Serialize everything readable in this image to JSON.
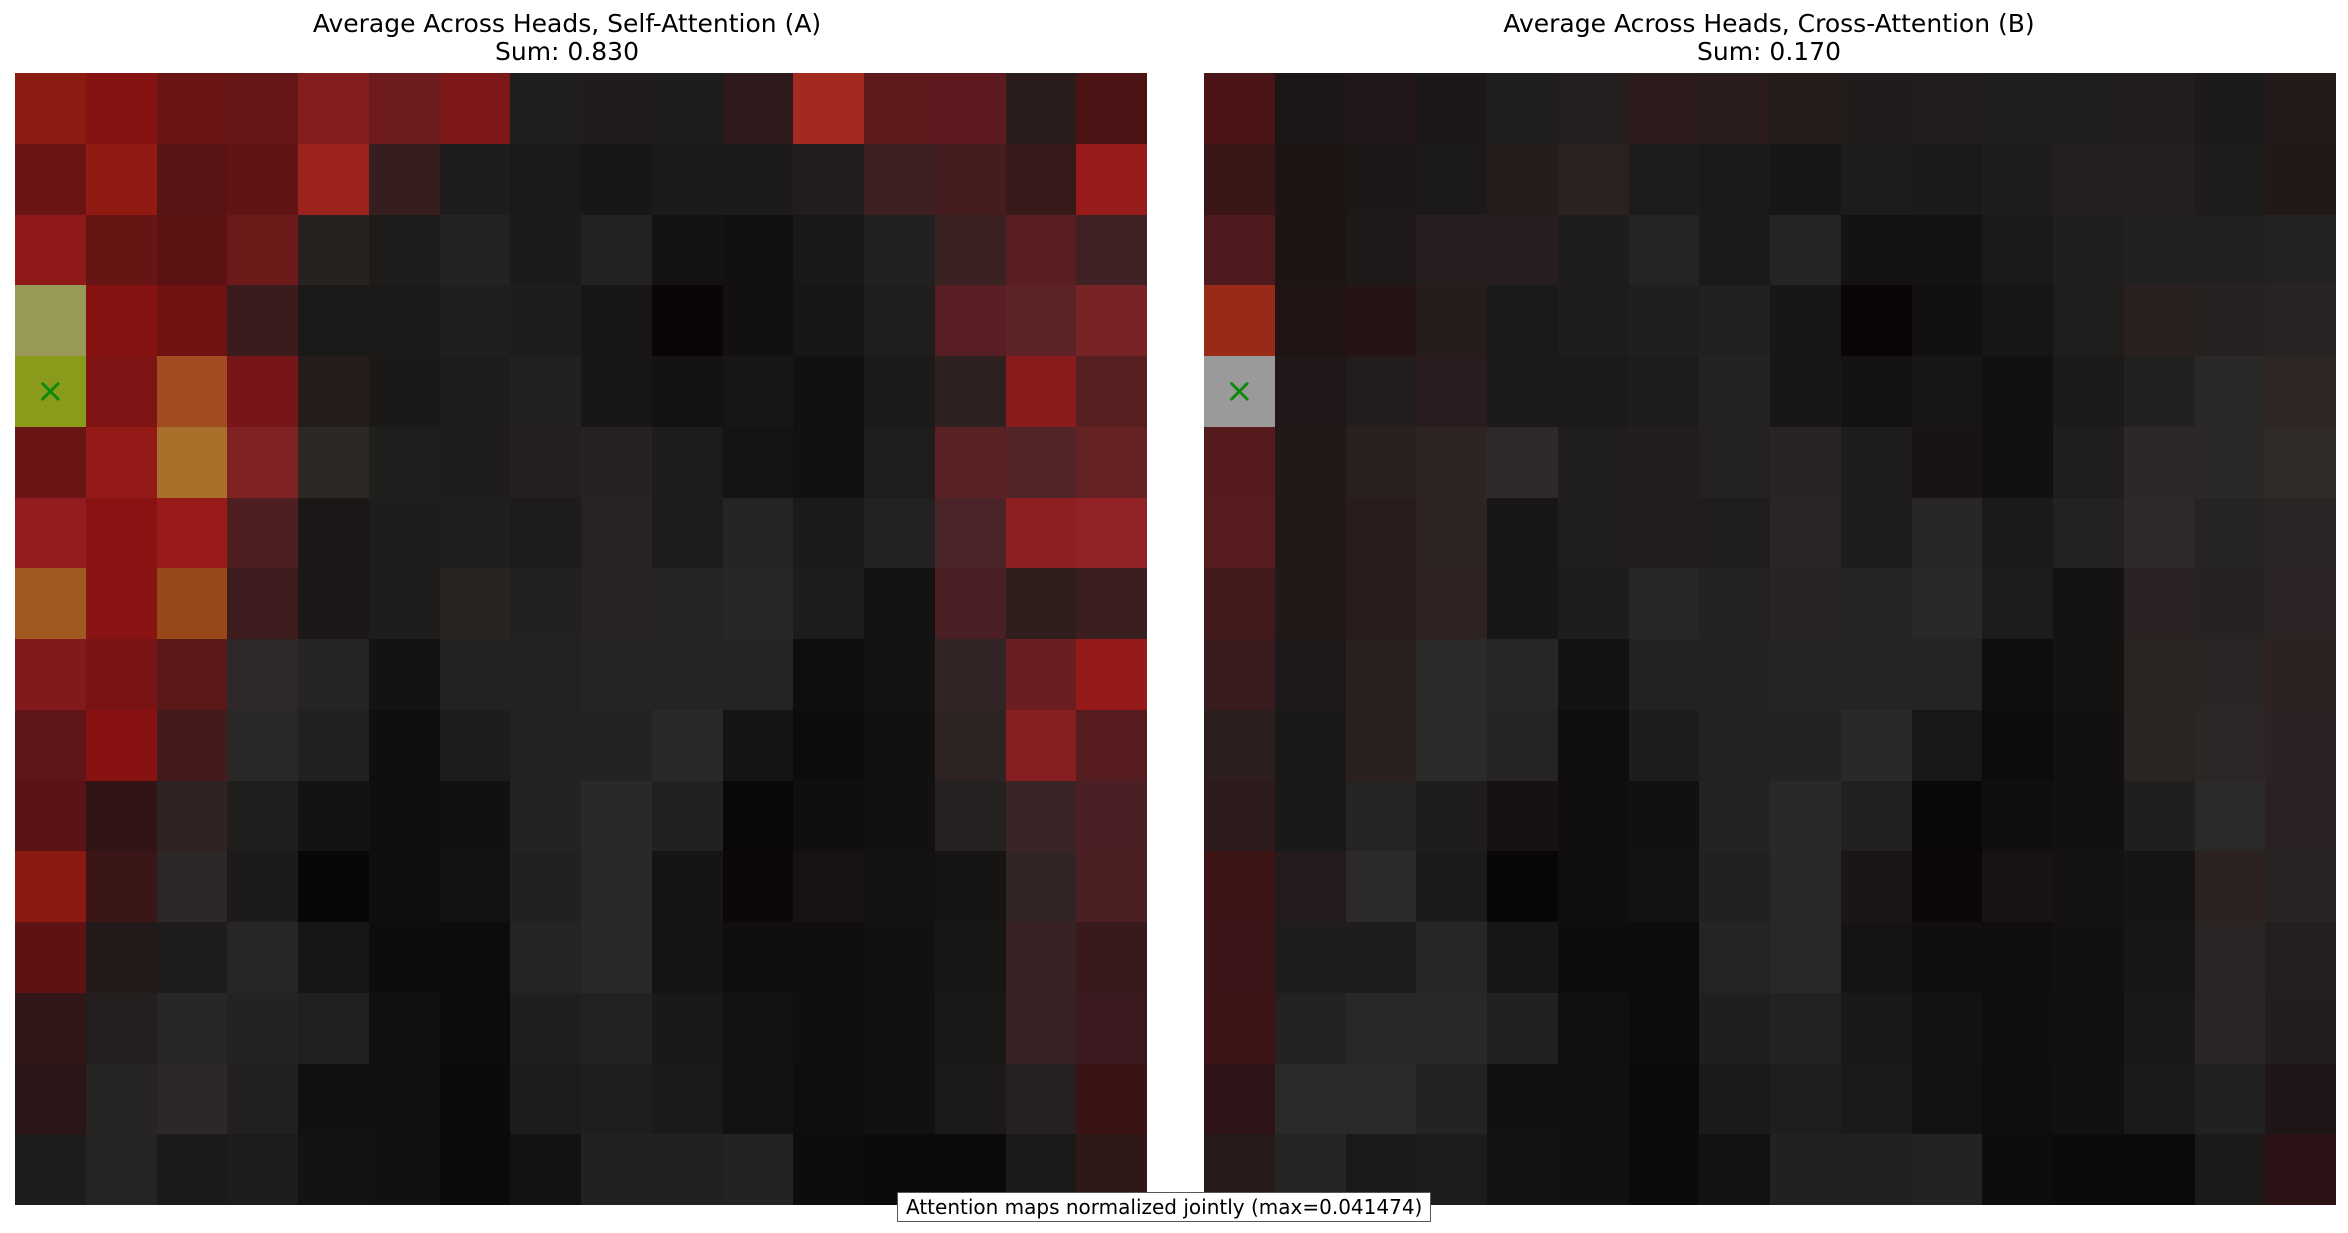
{
  "chart_data": [
    {
      "type": "heatmap",
      "title": "Average Across Heads, Self-Attention (A)",
      "subtitle": "Sum: 0.830",
      "marker": {
        "row": 4,
        "col": 0,
        "symbol": "×"
      },
      "colors": [
        [
          "#8c1c12",
          "#861212",
          "#6b1414",
          "#661616",
          "#831d1e",
          "#6d1b1f",
          "#7d1818",
          "#201e1d",
          "#211c1b",
          "#1e1d1c",
          "#2e1a1b",
          "#a32a1e",
          "#5d1b1e",
          "#5e1b1f",
          "#2b1d1c",
          "#4b1314"
        ],
        [
          "#6b1414",
          "#911a12",
          "#581314",
          "#601414",
          "#9c221e",
          "#361e1f",
          "#1e1d1c",
          "#1b1a19",
          "#191716",
          "#1c1b1a",
          "#1c1b1a",
          "#201d1c",
          "#3e1f22",
          "#451d1f",
          "#361a1a",
          "#971b18"
        ],
        [
          "#901a1a",
          "#661414",
          "#5c1212",
          "#6d1a1b",
          "#27211f",
          "#1d1c1b",
          "#242322",
          "#1c1b1a",
          "#242322",
          "#141312",
          "#121110",
          "#1a1817",
          "#222120",
          "#3a2223",
          "#5a1d20",
          "#3f2123"
        ],
        [
          "#9a9a58",
          "#861212",
          "#6e1212",
          "#3a1c1d",
          "#1c1a19",
          "#1b1a19",
          "#201f1e",
          "#1e1d1c",
          "#181716",
          "#0b0606",
          "#121110",
          "#181615",
          "#1f1e1d",
          "#591e23",
          "#5d2428",
          "#782326"
        ],
        [
          "#8a9a1a",
          "#7e1414",
          "#a24c20",
          "#771618",
          "#241d1c",
          "#1b1918",
          "#1d1c1b",
          "#22211f",
          "#181716",
          "#141212",
          "#181615",
          "#121010",
          "#1b1a19",
          "#2e2120",
          "#8a1c1c",
          "#581f21"
        ],
        [
          "#6b1616",
          "#931a16",
          "#a8702a",
          "#802224",
          "#2c2826",
          "#201e1d",
          "#1e1d1c",
          "#221f1e",
          "#252221",
          "#1d1c1b",
          "#161413",
          "#121010",
          "#201e1d",
          "#5b2226",
          "#542528",
          "#642225"
        ],
        [
          "#931c1e",
          "#8a1414",
          "#991a1a",
          "#4e1e20",
          "#1a1716",
          "#1f1d1c",
          "#201f1e",
          "#1d1c1b",
          "#272322",
          "#1d1c1b",
          "#262524",
          "#1b1a19",
          "#232221",
          "#4a2428",
          "#8f1e22",
          "#922226"
        ],
        [
          "#a05a20",
          "#8a1414",
          "#964818",
          "#3e1c1e",
          "#1b1817",
          "#1e1d1c",
          "#272422",
          "#222120",
          "#272423",
          "#252423",
          "#282726",
          "#1e1c1b",
          "#151312",
          "#4a2024",
          "#301e1d",
          "#3a1e20"
        ],
        [
          "#821a1c",
          "#7a1414",
          "#5a1818",
          "#2e2928",
          "#262423",
          "#151312",
          "#232221",
          "#232221",
          "#252423",
          "#252423",
          "#252423",
          "#0f0d0d",
          "#151312",
          "#302424",
          "#6a1e22",
          "#961a1a"
        ],
        [
          "#5e1618",
          "#881212",
          "#441a1c",
          "#292827",
          "#232120",
          "#100e0e",
          "#1e1d1c",
          "#232221",
          "#242322",
          "#2a2928",
          "#161413",
          "#0e0b0b",
          "#121010",
          "#2c2322",
          "#861e22",
          "#561c1f"
        ],
        [
          "#5a1214",
          "#301416",
          "#2f2324",
          "#1f1e1d",
          "#141212",
          "#100e0e",
          "#131110",
          "#242322",
          "#2a2928",
          "#222020",
          "#0a0707",
          "#110e0e",
          "#121010",
          "#242120",
          "#3a2426",
          "#4a2024"
        ],
        [
          "#8c1a12",
          "#3a1616",
          "#2d2827",
          "#1d1b1a",
          "#090606",
          "#110e0e",
          "#141211",
          "#222120",
          "#2a2928",
          "#171514",
          "#0c0808",
          "#161312",
          "#141211",
          "#171514",
          "#302424",
          "#4c2022"
        ],
        [
          "#5e1214",
          "#231a1a",
          "#1e1c1c",
          "#282625",
          "#181615",
          "#0f0c0c",
          "#0d0b0b",
          "#262423",
          "#2a2827",
          "#161413",
          "#100e0e",
          "#0f0d0d",
          "#121010",
          "#181615",
          "#382224",
          "#381a1d"
        ],
        [
          "#301616",
          "#251e1e",
          "#292627",
          "#242322",
          "#212020",
          "#120f0f",
          "#0d0b0b",
          "#201f1e",
          "#232221",
          "#1a1918",
          "#141211",
          "#100e0e",
          "#110f0f",
          "#1b1918",
          "#372124",
          "#3a1a1e"
        ],
        [
          "#2a1618",
          "#262524",
          "#2b2827",
          "#21201f",
          "#121010",
          "#131110",
          "#0c0a0a",
          "#1e1c1b",
          "#1f1e1d",
          "#1c1a19",
          "#141211",
          "#0f0d0d",
          "#121010",
          "#1c1a19",
          "#262020",
          "#3a1415"
        ],
        [
          "#1f1c1c",
          "#262424",
          "#1b1a19",
          "#1e1c1b",
          "#151312",
          "#121010",
          "#0c0a0a",
          "#141211",
          "#222120",
          "#222120",
          "#242222",
          "#0e0c0c",
          "#0c0a0a",
          "#0b0909",
          "#1c1a19",
          "#2e1818"
        ]
      ]
    },
    {
      "type": "heatmap",
      "title": "Average Across Heads, Cross-Attention (B)",
      "subtitle": "Sum: 0.170",
      "marker": {
        "row": 4,
        "col": 0,
        "symbol": "×"
      },
      "colors": [
        [
          "#4a1416",
          "#1c1616",
          "#211718",
          "#1d1818",
          "#1f1e1d",
          "#241e1e",
          "#2c1c1e",
          "#2a1c1c",
          "#241c1b",
          "#201c1c",
          "#211e1d",
          "#1f1e1d",
          "#201e1e",
          "#221e1e",
          "#1c1a1a",
          "#241a1a"
        ],
        [
          "#3a1616",
          "#1c1514",
          "#1c1818",
          "#1b1a19",
          "#231c1b",
          "#2a2120",
          "#1d1c1b",
          "#1b1a19",
          "#181716",
          "#1d1c1b",
          "#1b1a19",
          "#1e1d1c",
          "#251e1f",
          "#231f1f",
          "#1e1b1b",
          "#221818"
        ],
        [
          "#4e1a1e",
          "#1c1514",
          "#1e1818",
          "#261e1e",
          "#271f1f",
          "#1e1d1c",
          "#252423",
          "#1b1a19",
          "#252423",
          "#141312",
          "#151312",
          "#1b1a19",
          "#211e1e",
          "#222020",
          "#211f1f",
          "#242221"
        ],
        [
          "#9a2a18",
          "#201414",
          "#241414",
          "#261c1c",
          "#1b1a19",
          "#1e1d1c",
          "#201f1e",
          "#222120",
          "#181716",
          "#0a0606",
          "#121110",
          "#181615",
          "#1f1e1d",
          "#2a2020",
          "#252221",
          "#282423"
        ],
        [
          "#9a9a9a",
          "#201818",
          "#221c1c",
          "#2a1c1e",
          "#1c1b1a",
          "#1b1a19",
          "#1e1d1c",
          "#242322",
          "#181716",
          "#141212",
          "#181615",
          "#121010",
          "#1b1a19",
          "#232020",
          "#2b2828",
          "#2e2625"
        ],
        [
          "#541a1c",
          "#231818",
          "#2a2020",
          "#2e2424",
          "#2e2a29",
          "#201e1d",
          "#211e1d",
          "#242221",
          "#272423",
          "#1d1c1b",
          "#181413",
          "#121010",
          "#201e1d",
          "#2c2827",
          "#2b2928",
          "#302a29"
        ],
        [
          "#561c1e",
          "#221818",
          "#2a1c1c",
          "#2e2424",
          "#181615",
          "#1f1e1d",
          "#211e1d",
          "#201e1d",
          "#292625",
          "#1d1c1b",
          "#282726",
          "#1b1a19",
          "#232221",
          "#2c2928",
          "#262423",
          "#2a2626"
        ],
        [
          "#431a1c",
          "#211818",
          "#2a1c1c",
          "#2e2223",
          "#181716",
          "#1e1d1c",
          "#282624",
          "#232221",
          "#272423",
          "#252423",
          "#2a2928",
          "#1e1c1b",
          "#151312",
          "#2a2222",
          "#262221",
          "#2c2424"
        ],
        [
          "#381c1e",
          "#1e1818",
          "#2a2020",
          "#2c2a29",
          "#282625",
          "#141312",
          "#232221",
          "#232221",
          "#252423",
          "#252423",
          "#252423",
          "#0f0d0d",
          "#151312",
          "#2a2423",
          "#2a2626",
          "#2c2222"
        ],
        [
          "#2c1e1e",
          "#1a1818",
          "#2a2020",
          "#2c2a29",
          "#262423",
          "#0f0d0d",
          "#1e1d1c",
          "#232221",
          "#242322",
          "#2a2928",
          "#1a1817",
          "#0e0b0b",
          "#121010",
          "#2a2423",
          "#2c2626",
          "#2c2223"
        ],
        [
          "#2c1a1c",
          "#1a1818",
          "#252423",
          "#1e1d1c",
          "#151211",
          "#100e0e",
          "#131110",
          "#242322",
          "#2a2928",
          "#221f1f",
          "#0a0707",
          "#110e0e",
          "#121010",
          "#211f1e",
          "#2c2a29",
          "#2a2222"
        ],
        [
          "#3c1416",
          "#241c1c",
          "#2c2a29",
          "#1d1b1a",
          "#090606",
          "#110e0e",
          "#141211",
          "#222120",
          "#2a2928",
          "#1a1616",
          "#0c0808",
          "#161312",
          "#141211",
          "#171514",
          "#2c2222",
          "#282424"
        ],
        [
          "#3a1416",
          "#1e1c1c",
          "#1e1c1c",
          "#282625",
          "#181615",
          "#0f0c0c",
          "#0d0b0b",
          "#262423",
          "#2a2827",
          "#161413",
          "#100e0e",
          "#0f0d0d",
          "#121010",
          "#181615",
          "#2a2424",
          "#241e1e"
        ],
        [
          "#3c1416",
          "#232221",
          "#2a2827",
          "#292727",
          "#222120",
          "#120f0f",
          "#0d0b0b",
          "#201f1e",
          "#232221",
          "#1a1918",
          "#141211",
          "#100e0e",
          "#110f0f",
          "#1b1918",
          "#2a2424",
          "#221e1e"
        ],
        [
          "#2e1416",
          "#2b2a29",
          "#2b2929",
          "#242322",
          "#121010",
          "#131110",
          "#0c0a0a",
          "#1b1a19",
          "#1f1e1d",
          "#1c1a19",
          "#141211",
          "#0f0d0d",
          "#121010",
          "#1c1a19",
          "#222020",
          "#1e1616"
        ],
        [
          "#261a1a",
          "#262424",
          "#1b1a19",
          "#1e1c1b",
          "#151312",
          "#121010",
          "#0c0a0a",
          "#141211",
          "#222120",
          "#222120",
          "#242222",
          "#0e0c0c",
          "#0c0a0a",
          "#0b0909",
          "#1c1a19",
          "#2c1416"
        ]
      ]
    }
  ],
  "footer_note": "Attention maps normalized jointly (max=0.041474)"
}
